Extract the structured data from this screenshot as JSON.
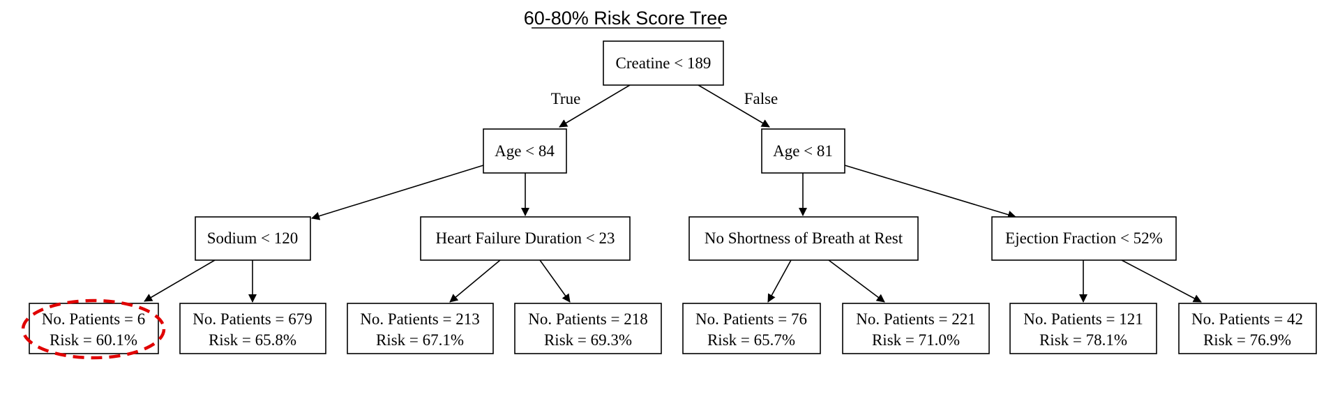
{
  "title": "60-80% Risk Score Tree",
  "colors": {
    "line": "#000000",
    "highlight": "#e00000",
    "background": "#ffffff"
  },
  "edge_labels": {
    "true": "True",
    "false": "False"
  },
  "nodes": {
    "root": "Creatine < 189",
    "age84": "Age < 84",
    "age81": "Age < 81",
    "sodium": "Sodium < 120",
    "hfd": "Heart Failure Duration < 23",
    "nosob": "No Shortness of Breath at Rest",
    "ef": "Ejection Fraction < 52%"
  },
  "leaves": [
    {
      "patients": "No. Patients = 6",
      "risk": "Risk = 60.1%",
      "highlighted": true
    },
    {
      "patients": "No. Patients = 679",
      "risk": "Risk = 65.8%"
    },
    {
      "patients": "No. Patients = 213",
      "risk": "Risk = 67.1%"
    },
    {
      "patients": "No. Patients = 218",
      "risk": "Risk = 69.3%"
    },
    {
      "patients": "No. Patients = 76",
      "risk": "Risk = 65.7%"
    },
    {
      "patients": "No. Patients = 221",
      "risk": "Risk = 71.0%"
    },
    {
      "patients": "No. Patients = 121",
      "risk": "Risk = 78.1%"
    },
    {
      "patients": "No. Patients = 42",
      "risk": "Risk = 76.9%"
    }
  ]
}
